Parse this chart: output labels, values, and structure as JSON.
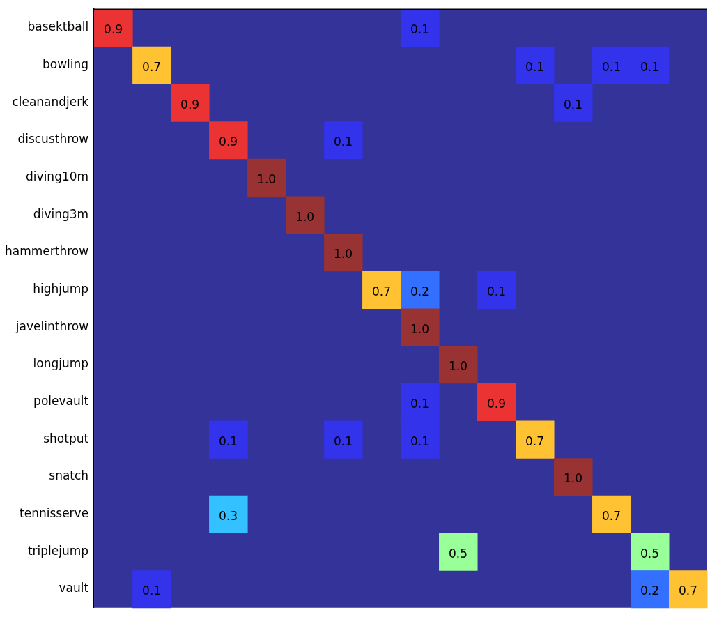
{
  "chart_data": {
    "type": "heatmap",
    "tick_labels": "y",
    "categories": [
      null,
      null,
      null,
      null,
      null,
      null,
      null,
      null,
      null,
      null,
      null,
      null,
      null,
      null,
      null,
      null
    ],
    "y_categories": [
      "basektball",
      "bowling",
      "cleanandjerk",
      "discusthrow",
      "diving10m",
      "diving3m",
      "hammerthrow",
      "highjump",
      "javelinthrow",
      "longjump",
      "polevault",
      "shotput",
      "snatch",
      "tennisserve",
      "triplejump",
      "vault"
    ],
    "cells": [
      [
        0.9,
        null,
        null,
        null,
        null,
        null,
        null,
        null,
        0.1,
        null,
        null,
        null,
        null,
        null,
        null,
        null
      ],
      [
        null,
        0.7,
        null,
        null,
        null,
        null,
        null,
        null,
        null,
        null,
        null,
        0.1,
        null,
        0.1,
        0.1,
        null
      ],
      [
        null,
        null,
        0.9,
        null,
        null,
        null,
        null,
        null,
        null,
        null,
        null,
        null,
        0.1,
        null,
        null,
        null
      ],
      [
        null,
        null,
        null,
        0.9,
        null,
        null,
        0.1,
        null,
        null,
        null,
        null,
        null,
        null,
        null,
        null,
        null
      ],
      [
        null,
        null,
        null,
        null,
        1.0,
        null,
        null,
        null,
        null,
        null,
        null,
        null,
        null,
        null,
        null,
        null
      ],
      [
        null,
        null,
        null,
        null,
        null,
        1.0,
        null,
        null,
        null,
        null,
        null,
        null,
        null,
        null,
        null,
        null
      ],
      [
        null,
        null,
        null,
        null,
        null,
        null,
        1.0,
        null,
        null,
        null,
        null,
        null,
        null,
        null,
        null,
        null
      ],
      [
        null,
        null,
        null,
        null,
        null,
        null,
        null,
        0.7,
        0.2,
        null,
        0.1,
        null,
        null,
        null,
        null,
        null
      ],
      [
        null,
        null,
        null,
        null,
        null,
        null,
        null,
        null,
        1.0,
        null,
        null,
        null,
        null,
        null,
        null,
        null
      ],
      [
        null,
        null,
        null,
        null,
        null,
        null,
        null,
        null,
        null,
        1.0,
        null,
        null,
        null,
        null,
        null,
        null
      ],
      [
        null,
        null,
        null,
        null,
        null,
        null,
        null,
        null,
        0.1,
        null,
        0.9,
        null,
        null,
        null,
        null,
        null
      ],
      [
        null,
        null,
        null,
        0.1,
        null,
        null,
        0.1,
        null,
        0.1,
        null,
        null,
        0.7,
        null,
        null,
        null,
        null
      ],
      [
        null,
        null,
        null,
        null,
        null,
        null,
        null,
        null,
        null,
        null,
        null,
        null,
        1.0,
        null,
        null,
        null
      ],
      [
        null,
        null,
        null,
        0.3,
        null,
        null,
        null,
        null,
        null,
        null,
        null,
        null,
        null,
        0.7,
        null,
        null
      ],
      [
        null,
        null,
        null,
        null,
        null,
        null,
        null,
        null,
        null,
        0.5,
        null,
        null,
        null,
        null,
        0.5,
        null
      ],
      [
        null,
        0.1,
        null,
        null,
        null,
        null,
        null,
        null,
        null,
        null,
        null,
        null,
        null,
        null,
        0.2,
        0.7
      ]
    ],
    "cell_labels": [
      [
        "0.9",
        null,
        null,
        null,
        null,
        null,
        null,
        null,
        "0.1",
        null,
        null,
        null,
        null,
        null,
        null,
        null
      ],
      [
        null,
        "0.7",
        null,
        null,
        null,
        null,
        null,
        null,
        null,
        null,
        null,
        "0.1",
        null,
        "0.1",
        "0.1",
        null
      ],
      [
        null,
        null,
        "0.9",
        null,
        null,
        null,
        null,
        null,
        null,
        null,
        null,
        null,
        "0.1",
        null,
        null,
        null
      ],
      [
        null,
        null,
        null,
        "0.9",
        null,
        null,
        "0.1",
        null,
        null,
        null,
        null,
        null,
        null,
        null,
        null,
        null
      ],
      [
        null,
        null,
        null,
        null,
        "1.0",
        null,
        null,
        null,
        null,
        null,
        null,
        null,
        null,
        null,
        null,
        null
      ],
      [
        null,
        null,
        null,
        null,
        null,
        "1.0",
        null,
        null,
        null,
        null,
        null,
        null,
        null,
        null,
        null,
        null
      ],
      [
        null,
        null,
        null,
        null,
        null,
        null,
        "1.0",
        null,
        null,
        null,
        null,
        null,
        null,
        null,
        null,
        null
      ],
      [
        null,
        null,
        null,
        null,
        null,
        null,
        null,
        "0.7",
        "0.2",
        null,
        "0.1",
        null,
        null,
        null,
        null,
        null
      ],
      [
        null,
        null,
        null,
        null,
        null,
        null,
        null,
        null,
        "1.0",
        null,
        null,
        null,
        null,
        null,
        null,
        null
      ],
      [
        null,
        null,
        null,
        null,
        null,
        null,
        null,
        null,
        null,
        "1.0",
        null,
        null,
        null,
        null,
        null,
        null
      ],
      [
        null,
        null,
        null,
        null,
        null,
        null,
        null,
        null,
        "0.1",
        null,
        "0.9",
        null,
        null,
        null,
        null,
        null
      ],
      [
        null,
        null,
        null,
        "0.1",
        null,
        null,
        "0.1",
        null,
        "0.1",
        null,
        null,
        "0.7",
        null,
        null,
        null,
        null
      ],
      [
        null,
        null,
        null,
        null,
        null,
        null,
        null,
        null,
        null,
        null,
        null,
        null,
        "1.0",
        null,
        null,
        null
      ],
      [
        null,
        null,
        null,
        "0.3",
        null,
        null,
        null,
        null,
        null,
        null,
        null,
        null,
        null,
        "0.7",
        null,
        null
      ],
      [
        null,
        null,
        null,
        null,
        null,
        null,
        null,
        null,
        null,
        "0.5",
        null,
        null,
        null,
        null,
        "0.5",
        null
      ],
      [
        null,
        "0.1",
        null,
        null,
        null,
        null,
        null,
        null,
        null,
        null,
        null,
        null,
        null,
        null,
        "0.2",
        "0.7"
      ]
    ]
  }
}
